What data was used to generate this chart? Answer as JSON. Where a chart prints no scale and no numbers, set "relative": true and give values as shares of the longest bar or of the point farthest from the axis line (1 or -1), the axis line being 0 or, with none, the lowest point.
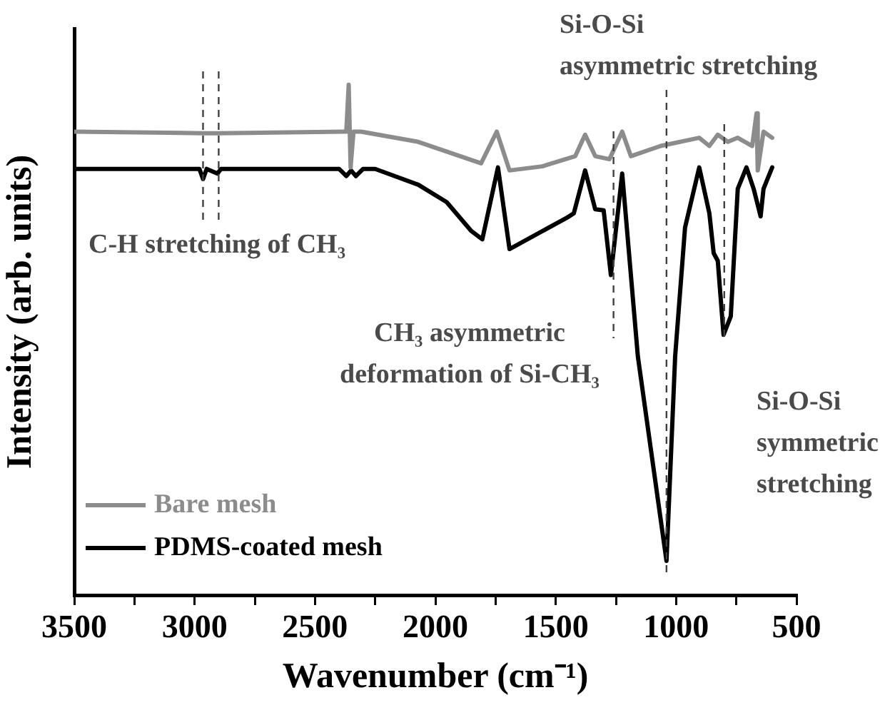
{
  "chart_data": {
    "type": "line",
    "relative": true,
    "xlabel": "Wavenumber (cm⁻¹)",
    "ylabel": "Intensity (arb. units)",
    "xlim": [
      3500,
      500
    ],
    "xticks": [
      3500,
      {
        "value": 3250,
        "label": null
      },
      3000,
      {
        "value": 2750,
        "label": null
      },
      2500,
      {
        "value": 2250,
        "label": null
      },
      2000,
      {
        "value": 1750,
        "label": null
      },
      1500,
      {
        "value": 1250,
        "label": null
      },
      1000,
      {
        "value": 750,
        "label": null
      },
      500
    ],
    "grid": false,
    "legend": "bottom left",
    "marker": "none",
    "line_style": "solid",
    "series": [
      {
        "name": "Bare mesh",
        "color": "#8c8c8c",
        "x": [
          3500,
          2965,
          2900,
          2380,
          2370,
          2360,
          2352,
          2340,
          2309,
          2071,
          1810,
          1745,
          1692,
          1556,
          1419,
          1378,
          1336,
          1277,
          1224,
          1188,
          1064,
          904,
          862,
          827,
          785,
          744,
          684,
          666,
          661,
          637,
          601
        ],
        "values": [
          0.908,
          0.905,
          0.905,
          0.908,
          0.908,
          1.0,
          0.838,
          0.908,
          0.908,
          0.888,
          0.846,
          0.908,
          0.832,
          0.84,
          0.86,
          0.902,
          0.86,
          0.854,
          0.908,
          0.86,
          0.88,
          0.896,
          0.88,
          0.902,
          0.888,
          0.896,
          0.88,
          0.944,
          0.832,
          0.908,
          0.896
        ]
      },
      {
        "name": "PDMS-coated mesh",
        "color": "#000000",
        "x": [
          3500,
          2980,
          2965,
          2950,
          2905,
          2890,
          2400,
          2370,
          2350,
          2330,
          2300,
          2250,
          2071,
          1953,
          1852,
          1805,
          1740,
          1692,
          1455,
          1425,
          1378,
          1336,
          1301,
          1271,
          1224,
          1159,
          1040,
          1004,
          963,
          904,
          862,
          844,
          827,
          803,
          773,
          744,
          708,
          678,
          649,
          637,
          601
        ],
        "values": [
          0.835,
          0.835,
          0.815,
          0.835,
          0.826,
          0.835,
          0.835,
          0.821,
          0.832,
          0.821,
          0.835,
          0.835,
          0.804,
          0.77,
          0.714,
          0.697,
          0.838,
          0.678,
          0.739,
          0.748,
          0.832,
          0.756,
          0.754,
          0.627,
          0.826,
          0.468,
          0.067,
          0.468,
          0.72,
          0.838,
          0.748,
          0.67,
          0.655,
          0.51,
          0.546,
          0.796,
          0.838,
          0.796,
          0.742,
          0.796,
          0.838
        ]
      }
    ],
    "ref_lines": [
      {
        "axis": "x",
        "value": 2965,
        "line_style": "dashed",
        "color": "#404040"
      },
      {
        "axis": "x",
        "value": 2900,
        "line_style": "dashed",
        "color": "#404040"
      },
      {
        "axis": "x",
        "value": 1260,
        "line_style": "dashed",
        "color": "#404040"
      },
      {
        "axis": "x",
        "value": 1040,
        "line_style": "dashed",
        "color": "#404040"
      },
      {
        "axis": "x",
        "value": 800,
        "line_style": "dashed",
        "color": "#404040"
      }
    ],
    "annotations": [
      "C-H stretching of CH₃",
      "CH₃ asymmetric deformation of Si-CH₃",
      "Si-O-Si asymmetric stretching",
      "Si-O-Si symmetric stretching"
    ]
  }
}
